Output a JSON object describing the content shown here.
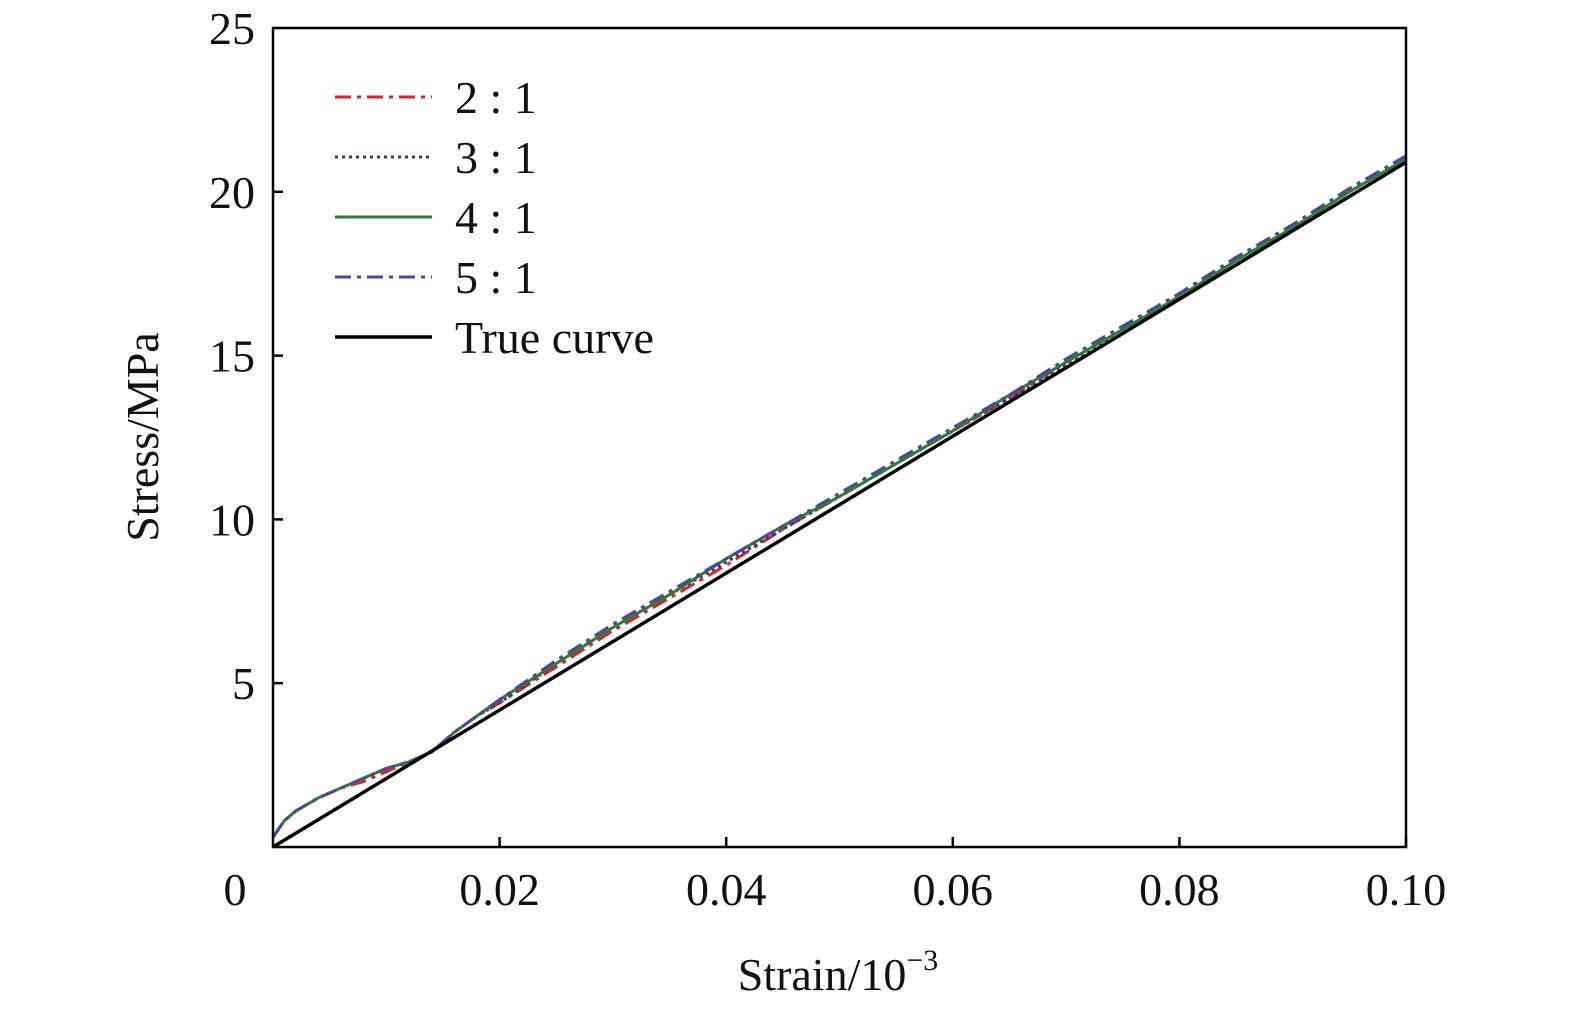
{
  "chart_data": {
    "type": "line",
    "xlabel_main": "Strain/10",
    "xlabel_exp": "−3",
    "ylabel": "Stress/MPa",
    "xlim": [
      0,
      0.1
    ],
    "ylim": [
      0,
      25
    ],
    "x_ticks": [
      {
        "value": 0,
        "label": "0"
      },
      {
        "value": 0.02,
        "label": "0.02"
      },
      {
        "value": 0.04,
        "label": "0.04"
      },
      {
        "value": 0.06,
        "label": "0.06"
      },
      {
        "value": 0.08,
        "label": "0.08"
      },
      {
        "value": 0.1,
        "label": "0.10"
      }
    ],
    "y_ticks": [
      {
        "value": 5,
        "label": "5"
      },
      {
        "value": 10,
        "label": "10"
      },
      {
        "value": 15,
        "label": "15"
      },
      {
        "value": 20,
        "label": "20"
      },
      {
        "value": 25,
        "label": "25"
      }
    ],
    "grid": false,
    "legend_position": "top-left",
    "series": [
      {
        "name": "2 : 1",
        "color": "#d7262e",
        "dash": "dashdot",
        "x": [
          0,
          0.001,
          0.002,
          0.004,
          0.006,
          0.008,
          0.01,
          0.012,
          0.014,
          0.016,
          0.018,
          0.02,
          0.025,
          0.03,
          0.035,
          0.04,
          0.045,
          0.05,
          0.055,
          0.06,
          0.065,
          0.07,
          0.075,
          0.08,
          0.085,
          0.09,
          0.095,
          0.1
        ],
        "y": [
          0.3,
          0.8,
          1.1,
          1.5,
          1.8,
          2.0,
          2.3,
          2.6,
          2.9,
          3.5,
          4.0,
          4.4,
          5.5,
          6.6,
          7.6,
          8.6,
          9.7,
          10.7,
          11.7,
          12.7,
          13.7,
          14.8,
          15.8,
          16.8,
          17.9,
          18.9,
          20.0,
          21.0
        ]
      },
      {
        "name": "3 : 1",
        "color": "#2c3a8c",
        "dash": "dotted",
        "x": [
          0,
          0.001,
          0.002,
          0.004,
          0.006,
          0.008,
          0.01,
          0.012,
          0.014,
          0.016,
          0.018,
          0.02,
          0.025,
          0.03,
          0.035,
          0.04,
          0.045,
          0.05,
          0.055,
          0.06,
          0.065,
          0.07,
          0.075,
          0.08,
          0.085,
          0.09,
          0.095,
          0.1
        ],
        "y": [
          0.3,
          0.8,
          1.1,
          1.5,
          1.8,
          2.1,
          2.4,
          2.6,
          2.9,
          3.5,
          4.0,
          4.4,
          5.6,
          6.7,
          7.7,
          8.7,
          9.7,
          10.7,
          11.7,
          12.7,
          13.7,
          14.7,
          15.8,
          16.8,
          17.9,
          18.9,
          20.0,
          21.0
        ]
      },
      {
        "name": "4 : 1",
        "color": "#2f7d32",
        "dash": "solid",
        "x": [
          0,
          0.001,
          0.002,
          0.004,
          0.006,
          0.008,
          0.01,
          0.012,
          0.014,
          0.016,
          0.018,
          0.02,
          0.025,
          0.03,
          0.035,
          0.04,
          0.045,
          0.05,
          0.055,
          0.06,
          0.065,
          0.07,
          0.075,
          0.08,
          0.085,
          0.09,
          0.095,
          0.1
        ],
        "y": [
          0.3,
          0.8,
          1.1,
          1.5,
          1.8,
          2.1,
          2.4,
          2.6,
          2.9,
          3.5,
          4.0,
          4.5,
          5.6,
          6.7,
          7.7,
          8.8,
          9.8,
          10.7,
          11.7,
          12.7,
          13.8,
          14.8,
          15.8,
          16.8,
          17.9,
          18.9,
          20.0,
          21.0
        ]
      },
      {
        "name": "5 : 1",
        "color": "#4a4a9c",
        "dash": "dashdot",
        "x": [
          0,
          0.001,
          0.002,
          0.004,
          0.006,
          0.008,
          0.01,
          0.012,
          0.014,
          0.016,
          0.018,
          0.02,
          0.025,
          0.03,
          0.035,
          0.04,
          0.045,
          0.05,
          0.055,
          0.06,
          0.065,
          0.07,
          0.075,
          0.08,
          0.085,
          0.09,
          0.095,
          0.1
        ],
        "y": [
          0.3,
          0.8,
          1.1,
          1.5,
          1.8,
          2.1,
          2.4,
          2.6,
          2.9,
          3.5,
          4.0,
          4.5,
          5.7,
          6.8,
          7.8,
          8.8,
          9.8,
          10.8,
          11.8,
          12.8,
          13.8,
          14.9,
          15.9,
          16.9,
          18.0,
          19.0,
          20.1,
          21.1
        ]
      },
      {
        "name": "True curve",
        "color": "#000000",
        "dash": "solid",
        "x": [
          0,
          0.1
        ],
        "y": [
          0,
          20.9
        ]
      }
    ]
  }
}
